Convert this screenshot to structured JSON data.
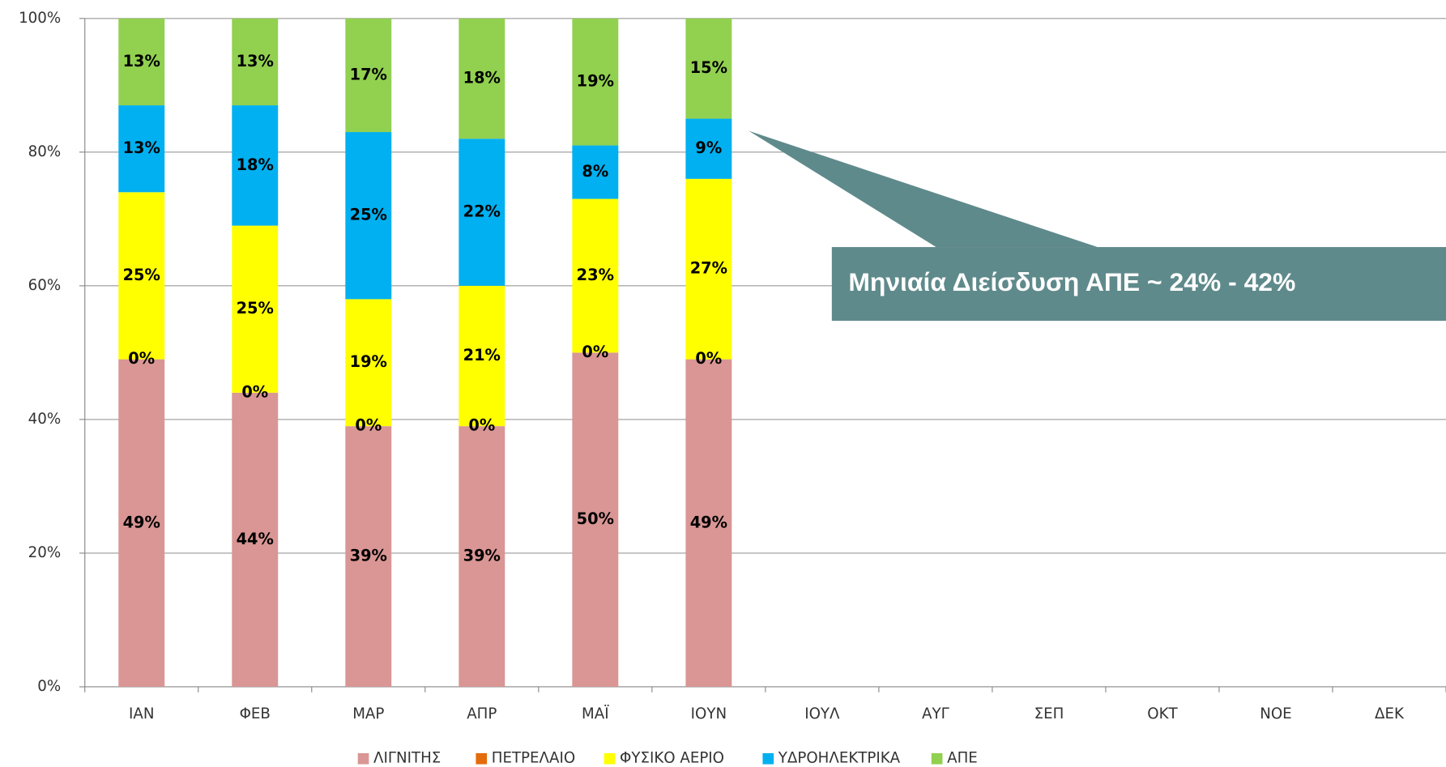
{
  "chart_data": {
    "type": "stacked_bar",
    "categories": [
      "ΙΑΝ",
      "ΦΕΒ",
      "ΜΑΡ",
      "ΑΠΡ",
      "ΜΑΪ",
      "ΙΟΥΝ",
      "ΙΟΥΛ",
      "ΑΥΓ",
      "ΣΕΠ",
      "ΟΚΤ",
      "ΝΟΕ",
      "ΔΕΚ"
    ],
    "series": [
      {
        "name": "ΛΙΓΝΙΤΗΣ",
        "color": "#d99694",
        "values": [
          49,
          44,
          39,
          39,
          50,
          49,
          null,
          null,
          null,
          null,
          null,
          null
        ],
        "value_labels": [
          "49%",
          "44%",
          "39%",
          "39%",
          "50%",
          "49%",
          null,
          null,
          null,
          null,
          null,
          null
        ]
      },
      {
        "name": "ΠΕΤΡΕΛΑΙΟ",
        "color": "#e46c0a",
        "values": [
          0,
          0,
          0,
          0,
          0,
          0,
          null,
          null,
          null,
          null,
          null,
          null
        ],
        "value_labels": [
          "0%",
          "0%",
          "0%",
          "0%",
          "0%",
          "0%",
          null,
          null,
          null,
          null,
          null,
          null
        ]
      },
      {
        "name": "ΦΥΣΙΚΟ ΑΕΡΙΟ",
        "color": "#ffff00",
        "values": [
          25,
          25,
          19,
          21,
          23,
          27,
          null,
          null,
          null,
          null,
          null,
          null
        ],
        "value_labels": [
          "25%",
          "25%",
          "19%",
          "21%",
          "23%",
          "27%",
          null,
          null,
          null,
          null,
          null,
          null
        ]
      },
      {
        "name": "ΥΔΡΟΗΛΕΚΤΡΙΚΑ",
        "color": "#00b0f0",
        "values": [
          13,
          18,
          25,
          22,
          8,
          9,
          null,
          null,
          null,
          null,
          null,
          null
        ],
        "value_labels": [
          "13%",
          "18%",
          "25%",
          "22%",
          "8%",
          "9%",
          null,
          null,
          null,
          null,
          null,
          null
        ]
      },
      {
        "name": "ΑΠΕ",
        "color": "#92d050",
        "values": [
          13,
          13,
          17,
          18,
          19,
          15,
          null,
          null,
          null,
          null,
          null,
          null
        ],
        "value_labels": [
          "13%",
          "13%",
          "17%",
          "18%",
          "19%",
          "15%",
          null,
          null,
          null,
          null,
          null,
          null
        ]
      }
    ],
    "ylim": [
      0,
      100
    ],
    "yticks": [
      {
        "value": 0,
        "label": "0%"
      },
      {
        "value": 20,
        "label": "20%"
      },
      {
        "value": 40,
        "label": "40%"
      },
      {
        "value": 60,
        "label": "60%"
      },
      {
        "value": 80,
        "label": "80%"
      },
      {
        "value": 100,
        "label": "100%"
      }
    ],
    "grid": true,
    "legend": "bottom",
    "annotation": "Μηνιαία Διείσδυση ΑΠΕ ~ 24% - 42%"
  }
}
